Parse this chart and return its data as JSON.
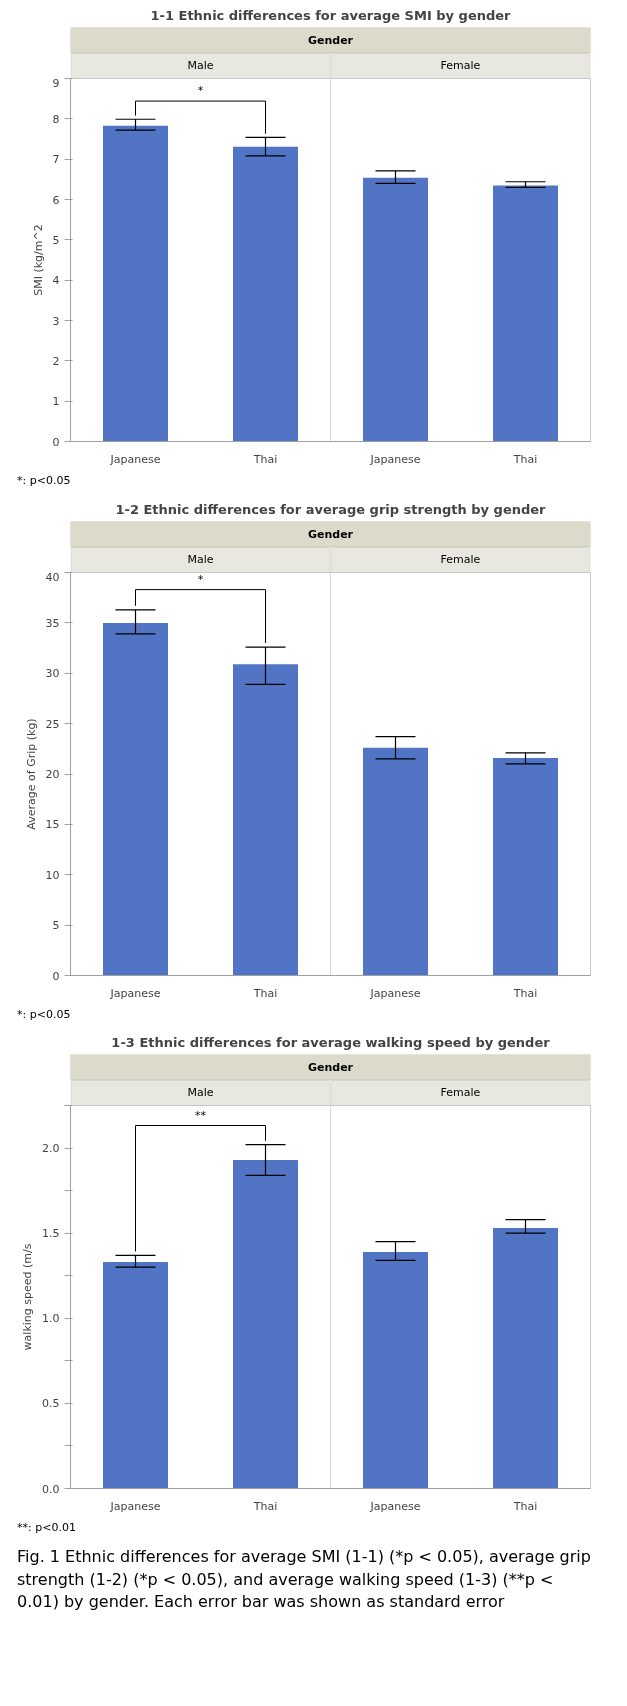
{
  "chart_data": [
    {
      "type": "bar",
      "title": "1-1 Ethnic differences for average SMI by gender",
      "ylabel": "SMI (kg/m^2",
      "categories": [
        "Japanese",
        "Thai",
        "Japanese",
        "Thai"
      ],
      "color": "#5274c5",
      "values": [
        7.83,
        7.31,
        6.54,
        6.35
      ],
      "errors": [
        [
          7.72,
          7.99
        ],
        [
          7.08,
          7.54
        ],
        [
          6.4,
          6.71
        ],
        [
          6.3,
          6.44
        ]
      ],
      "ylim": [
        0,
        9
      ],
      "yticks": [
        0,
        1,
        2,
        3,
        4,
        5,
        6,
        7,
        8,
        9
      ],
      "annotations": [
        "Gender",
        "Male",
        "Female",
        "*",
        "*: p<0.05"
      ]
    },
    {
      "type": "bar",
      "title": "1-2 Ethnic differences for average grip strength by gender",
      "ylabel": "Average of Grip (kg)",
      "categories": [
        "Japanese",
        "Thai",
        "Japanese",
        "Thai"
      ],
      "color": "#5274c5",
      "values": [
        35.0,
        30.9,
        22.6,
        21.6
      ],
      "errors": [
        [
          33.9,
          36.3
        ],
        [
          28.9,
          32.6
        ],
        [
          21.5,
          23.7
        ],
        [
          21.0,
          22.1
        ]
      ],
      "ylim": [
        0,
        40
      ],
      "yticks": [
        0,
        5,
        10,
        15,
        20,
        25,
        30,
        35,
        40
      ],
      "annotations": [
        "Gender",
        "Male",
        "Female",
        "*",
        "*: p<0.05"
      ]
    },
    {
      "type": "bar",
      "title": "1-3 Ethnic differences for average walking speed by gender",
      "ylabel": "walking speed (m/s",
      "categories": [
        "Japanese",
        "Thai",
        "Japanese",
        "Thai"
      ],
      "color": "#5274c5",
      "values": [
        1.33,
        1.93,
        1.39,
        1.53
      ],
      "errors": [
        [
          1.3,
          1.37
        ],
        [
          1.84,
          2.02
        ],
        [
          1.34,
          1.45
        ],
        [
          1.5,
          1.58
        ]
      ],
      "ylim": [
        0,
        2.25
      ],
      "yticks": [
        {
          "value": 0,
          "label": "0.0"
        },
        {
          "value": 0.25,
          "label": null
        },
        {
          "value": 0.5,
          "label": "0.5"
        },
        {
          "value": 0.75,
          "label": null
        },
        {
          "value": 1,
          "label": "1.0"
        },
        {
          "value": 1.25,
          "label": null
        },
        {
          "value": 1.5,
          "label": "1.5"
        },
        {
          "value": 1.75,
          "label": null
        },
        {
          "value": 2,
          "label": "2.0"
        },
        {
          "value": 2.25,
          "label": null
        }
      ],
      "annotations": [
        "Gender",
        "Male",
        "Female",
        "**",
        "**: p<0.01"
      ]
    },
    {
      "type": "other",
      "title": "Fig. 1 Ethnic differences for average SMI (1-1) (*p < 0.05), average grip strength (1-2) (*p < 0.05), and average walking speed (1-3) (**p < 0.01) by gender. Each error bar was shown as standard error"
    }
  ]
}
